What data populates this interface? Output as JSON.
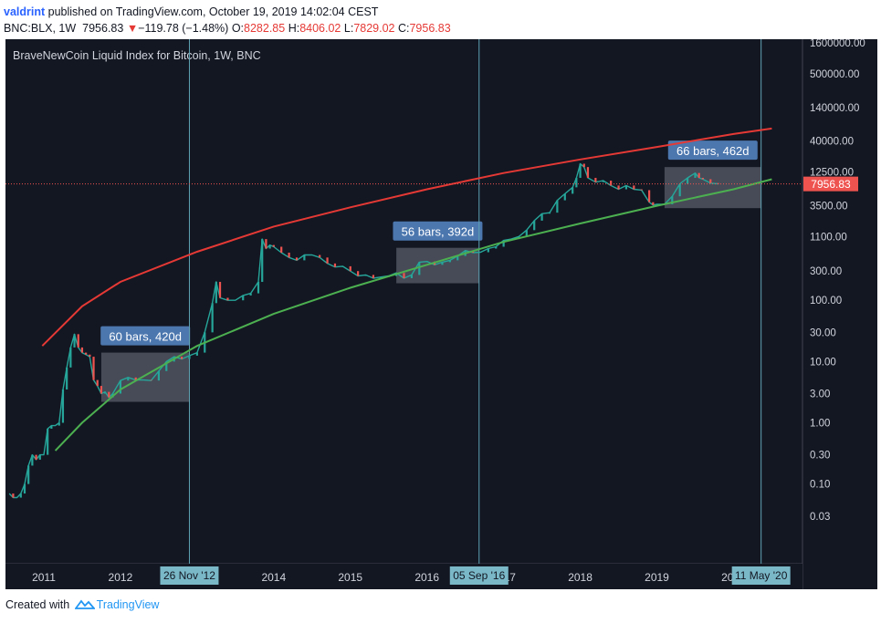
{
  "header": {
    "author": "valdrint",
    "published": "published on TradingView.com, October 19, 2019 14:02:04 CEST",
    "symbol": "BNC:BLX, 1W",
    "last": "7956.83",
    "change_arrow": "▼",
    "change": "−119.78 (−1.48%)",
    "o_label": "O:",
    "o_val": "8282.85",
    "h_label": "H:",
    "h_val": "8406.02",
    "l_label": "L:",
    "l_val": "7829.02",
    "c_label": "C:",
    "c_val": "7956.83"
  },
  "footer": {
    "created_with": "Created with",
    "brand": "TradingView"
  },
  "chart_data": {
    "type": "line",
    "title": "BraveNewCoin Liquid Index for Bitcoin, 1W, BNC",
    "y_scale": "log",
    "ylim": [
      0.005,
      1600000
    ],
    "xlim": [
      2010.5,
      2020.9
    ],
    "grid": false,
    "y_ticks": [
      {
        "v": 1600000,
        "label": "1600000.00"
      },
      {
        "v": 500000,
        "label": "500000.00"
      },
      {
        "v": 140000,
        "label": "140000.00"
      },
      {
        "v": 40000,
        "label": "40000.00"
      },
      {
        "v": 12500,
        "label": "12500.00"
      },
      {
        "v": 3500,
        "label": "3500.00"
      },
      {
        "v": 1100,
        "label": "1100.00"
      },
      {
        "v": 300,
        "label": "300.00"
      },
      {
        "v": 100,
        "label": "100.00"
      },
      {
        "v": 30,
        "label": "30.00"
      },
      {
        "v": 10,
        "label": "10.00"
      },
      {
        "v": 3,
        "label": "3.00"
      },
      {
        "v": 1,
        "label": "1.00"
      },
      {
        "v": 0.3,
        "label": "0.30"
      },
      {
        "v": 0.1,
        "label": "0.10"
      },
      {
        "v": 0.03,
        "label": "0.03"
      }
    ],
    "x_ticks": [
      {
        "v": 2011,
        "label": "2011"
      },
      {
        "v": 2012,
        "label": "2012"
      },
      {
        "v": 2014,
        "label": "2014"
      },
      {
        "v": 2015,
        "label": "2015"
      },
      {
        "v": 2016,
        "label": "2016"
      },
      {
        "v": 2017,
        "label": "2017"
      },
      {
        "v": 2018,
        "label": "2018"
      },
      {
        "v": 2019,
        "label": "2019"
      },
      {
        "v": 2020,
        "label": "2020"
      }
    ],
    "last_price": {
      "value": 7956.83,
      "label": "7956.83",
      "color": "#ef5350"
    },
    "vertical_markers": [
      {
        "x": 2012.9,
        "label": "26 Nov '12"
      },
      {
        "x": 2016.68,
        "label": "05 Sep '16"
      },
      {
        "x": 2020.36,
        "label": "11 May '20"
      }
    ],
    "ranges": [
      {
        "x0": 2011.75,
        "x1": 2012.9,
        "y0": 2.2,
        "y1": 14,
        "label": "60 bars, 420d"
      },
      {
        "x0": 2015.6,
        "x1": 2016.68,
        "y0": 190,
        "y1": 720,
        "label": "56 bars, 392d"
      },
      {
        "x0": 2019.1,
        "x1": 2020.36,
        "y0": 3200,
        "y1": 15000,
        "label": "66 bars, 462d"
      }
    ],
    "trendlines": [
      {
        "name": "",
        "color": "#e53935",
        "points": [
          [
            2010.98,
            18
          ],
          [
            2011.5,
            80
          ],
          [
            2012,
            200
          ],
          [
            2013,
            620
          ],
          [
            2014,
            1600
          ],
          [
            2015,
            3300
          ],
          [
            2016,
            6500
          ],
          [
            2017,
            12000
          ],
          [
            2018,
            20000
          ],
          [
            2019,
            32000
          ],
          [
            2020,
            52000
          ],
          [
            2020.5,
            64000
          ]
        ]
      },
      {
        "name": "",
        "color": "#4caf50",
        "points": [
          [
            2011.15,
            0.35
          ],
          [
            2011.5,
            1.0
          ],
          [
            2012,
            3.5
          ],
          [
            2013,
            18
          ],
          [
            2014,
            60
          ],
          [
            2015,
            160
          ],
          [
            2016,
            380
          ],
          [
            2017,
            900
          ],
          [
            2018,
            1800
          ],
          [
            2019,
            3500
          ],
          [
            2020,
            6500
          ],
          [
            2020.5,
            9500
          ]
        ]
      }
    ],
    "series": [
      {
        "color": "#26a69a",
        "x": [
          2010.55,
          2010.6,
          2010.65,
          2010.7,
          2010.75,
          2010.8,
          2010.85,
          2010.9,
          2010.95,
          2011.0,
          2011.05,
          2011.1,
          2011.15,
          2011.2,
          2011.25,
          2011.3,
          2011.35,
          2011.4,
          2011.45,
          2011.5,
          2011.55,
          2011.6,
          2011.65,
          2011.7,
          2011.75,
          2011.8,
          2011.85,
          2011.9,
          2012.0,
          2012.1,
          2012.2,
          2012.3,
          2012.4,
          2012.5,
          2012.6,
          2012.7,
          2012.8,
          2012.9,
          2013.0,
          2013.1,
          2013.2,
          2013.25,
          2013.3,
          2013.4,
          2013.5,
          2013.6,
          2013.7,
          2013.8,
          2013.85,
          2013.9,
          2013.95,
          2014.0,
          2014.1,
          2014.2,
          2014.3,
          2014.4,
          2014.5,
          2014.6,
          2014.7,
          2014.8,
          2014.9,
          2015.0,
          2015.1,
          2015.2,
          2015.3,
          2015.4,
          2015.5,
          2015.6,
          2015.7,
          2015.8,
          2015.9,
          2016.0,
          2016.1,
          2016.2,
          2016.3,
          2016.4,
          2016.5,
          2016.6,
          2016.7,
          2016.8,
          2016.9,
          2017.0,
          2017.1,
          2017.2,
          2017.3,
          2017.4,
          2017.5,
          2017.6,
          2017.7,
          2017.8,
          2017.9,
          2017.95,
          2018.0,
          2018.05,
          2018.1,
          2018.2,
          2018.3,
          2018.4,
          2018.5,
          2018.6,
          2018.7,
          2018.8,
          2018.9,
          2018.95,
          2019.0,
          2019.1,
          2019.2,
          2019.3,
          2019.4,
          2019.5,
          2019.55,
          2019.6,
          2019.7,
          2019.8
        ],
        "values": [
          0.07,
          0.06,
          0.06,
          0.07,
          0.1,
          0.2,
          0.3,
          0.25,
          0.3,
          0.3,
          0.8,
          0.9,
          0.9,
          1.0,
          3.5,
          8,
          17,
          28,
          17,
          14,
          13,
          12,
          5,
          4,
          3,
          3.2,
          2.6,
          3,
          4.9,
          5.5,
          5,
          5,
          4.9,
          7,
          10,
          12,
          11,
          12.5,
          14,
          30,
          90,
          200,
          110,
          100,
          100,
          120,
          130,
          200,
          1000,
          700,
          800,
          750,
          600,
          500,
          450,
          550,
          550,
          500,
          400,
          350,
          360,
          300,
          250,
          260,
          230,
          240,
          250,
          280,
          230,
          260,
          420,
          430,
          380,
          420,
          450,
          530,
          650,
          600,
          610,
          700,
          750,
          950,
          1000,
          1100,
          1400,
          2000,
          2600,
          2700,
          4300,
          5500,
          7000,
          10000,
          17000,
          15000,
          10000,
          8500,
          9000,
          7500,
          6500,
          7500,
          6500,
          6300,
          4000,
          3600,
          3700,
          3700,
          5000,
          8000,
          10000,
          12000,
          10000,
          9500,
          8200,
          7956
        ]
      }
    ]
  }
}
